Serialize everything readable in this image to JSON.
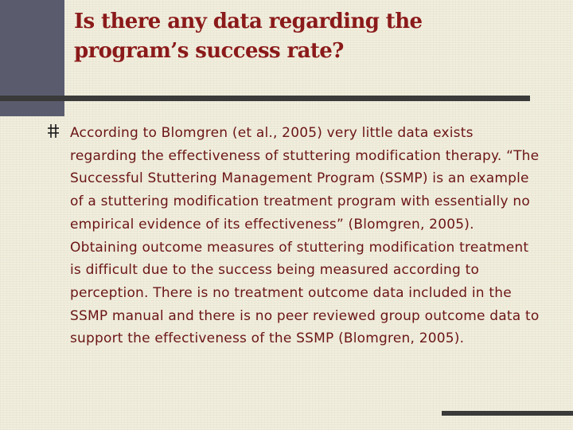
{
  "slide": {
    "title": "Is there any data regarding the program’s success rate?",
    "bullet_icon": "hash-bullet-icon",
    "body": "According to Blomgren (et al., 2005) very little data exists regarding the effectiveness of stuttering modification therapy. “The Successful Stuttering Management Program (SSMP) is an example of a stuttering modification treatment program with essentially no empirical evidence of its effectiveness” (Blomgren, 2005). Obtaining outcome measures of stuttering modification treatment is difficult due to the success being measured according to perception. There is no treatment outcome data included in the SSMP manual and there is no peer reviewed group outcome data to support the effectiveness of the SSMP (Blomgren, 2005)."
  },
  "colors": {
    "background": "#f1eedd",
    "title": "#8b1a1a",
    "body_text": "#6b1515",
    "accent_block": "#5a5c6e",
    "rule": "#3a3a3a"
  }
}
